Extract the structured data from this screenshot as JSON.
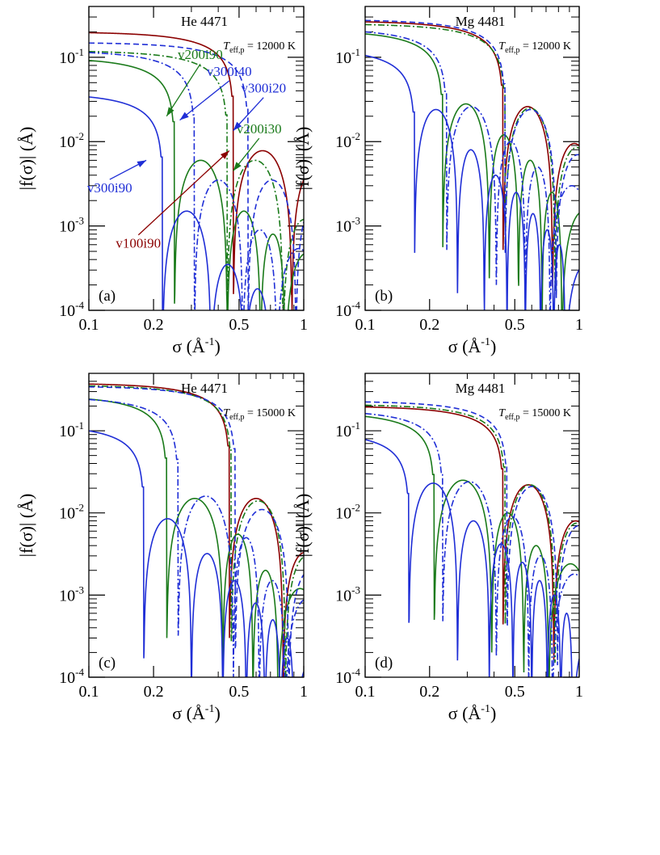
{
  "figure": {
    "series_styles": {
      "v100i90": {
        "color": "#8b0000",
        "dash": "solid"
      },
      "v200i30": {
        "color": "#1a7a1a",
        "dash": "dashdot"
      },
      "v200i90": {
        "color": "#1a7a1a",
        "dash": "solid"
      },
      "v300i20": {
        "color": "#1f2ed6",
        "dash": "dashed"
      },
      "v300i40": {
        "color": "#1f2ed6",
        "dash": "dashdot"
      },
      "v300i90": {
        "color": "#1f2ed6",
        "dash": "solid"
      }
    }
  },
  "chart_data": [
    {
      "type": "line",
      "panel": "(a)",
      "title": "He 4471",
      "annotation": {
        "prefix": "T",
        "sub": "eff,p",
        "suffix": " = 12000 K"
      },
      "xlabel": {
        "main": "σ (Å",
        "sup": "-1",
        "end": ")"
      },
      "ylabel": "|f(σ)|  (Å)",
      "x_scale": "log",
      "y_scale": "log",
      "xlim": [
        0.1,
        1
      ],
      "ylim": [
        0.0001,
        0.4
      ],
      "x_ticks": [
        {
          "v": 0.1,
          "label": "0.1"
        },
        {
          "v": 0.2,
          "label": "0.2"
        },
        {
          "v": 0.5,
          "label": "0.5"
        },
        {
          "v": 1,
          "label": "1"
        }
      ],
      "y_ticks": [
        {
          "v": 0.0001,
          "base": "10",
          "exp": "-4"
        },
        {
          "v": 0.001,
          "base": "10",
          "exp": "-3"
        },
        {
          "v": 0.01,
          "base": "10",
          "exp": "-2"
        },
        {
          "v": 0.1,
          "base": "10",
          "exp": "-1"
        }
      ],
      "series": [
        {
          "name": "v100i90",
          "a0": 0.2,
          "z": [
            0.47,
            0.88
          ],
          "pk": [
            0.0078
          ],
          "lbl": {
            "text": "v100i90",
            "tx": 0.17,
            "ty": 0.00055,
            "ax": 0.45,
            "ay": 0.0078
          }
        },
        {
          "name": "v200i30",
          "a0": 0.12,
          "z": [
            0.44,
            0.8
          ],
          "pk": [
            0.006,
            0.0012
          ],
          "lbl": {
            "text": "v200i30",
            "tx": 0.62,
            "ty": 0.0125,
            "ax": 0.47,
            "ay": 0.0045
          }
        },
        {
          "name": "v200i90",
          "a0": 0.1,
          "z": [
            0.25,
            0.44,
            0.63,
            0.82
          ],
          "pk": [
            0.006,
            0.0015,
            0.0008
          ],
          "lbl": {
            "text": "v200i90",
            "tx": 0.33,
            "ty": 0.095,
            "ax": 0.23,
            "ay": 0.02
          }
        },
        {
          "name": "v300i20",
          "a0": 0.15,
          "z": [
            0.55,
            0.92
          ],
          "pk": [
            0.0035
          ],
          "lbl": {
            "text": "v300i20",
            "tx": 0.65,
            "ty": 0.038,
            "ax": 0.47,
            "ay": 0.0135
          }
        },
        {
          "name": "v300i40",
          "a0": 0.12,
          "z": [
            0.31,
            0.52,
            0.75
          ],
          "pk": [
            0.0035,
            0.0009
          ],
          "lbl": {
            "text": "v300i40",
            "tx": 0.45,
            "ty": 0.06,
            "ax": 0.265,
            "ay": 0.018
          }
        },
        {
          "name": "v300i90",
          "a0": 0.038,
          "z": [
            0.22,
            0.37,
            0.53,
            0.7,
            0.86
          ],
          "pk": [
            0.0015,
            0.00035,
            0.00018,
            0.0001
          ],
          "lbl": {
            "text": "v300i90",
            "tx": 0.125,
            "ty": 0.0025,
            "ax": 0.185,
            "ay": 0.006
          }
        }
      ]
    },
    {
      "type": "line",
      "panel": "(b)",
      "title": "Mg 4481",
      "annotation": {
        "prefix": "T",
        "sub": "eff,p",
        "suffix": " = 12000 K"
      },
      "xlabel": {
        "main": "σ (Å",
        "sup": "-1",
        "end": ")"
      },
      "ylabel": "|f(σ)|  (Å)",
      "x_scale": "log",
      "y_scale": "log",
      "xlim": [
        0.1,
        1
      ],
      "ylim": [
        0.0001,
        0.4
      ],
      "x_ticks": [
        {
          "v": 0.1,
          "label": "0.1"
        },
        {
          "v": 0.2,
          "label": "0.2"
        },
        {
          "v": 0.5,
          "label": "0.5"
        },
        {
          "v": 1,
          "label": "1"
        }
      ],
      "y_ticks": [
        {
          "v": 0.0001,
          "base": "10",
          "exp": "-4"
        },
        {
          "v": 0.001,
          "base": "10",
          "exp": "-3"
        },
        {
          "v": 0.01,
          "base": "10",
          "exp": "-2"
        },
        {
          "v": 0.1,
          "base": "10",
          "exp": "-1"
        }
      ],
      "series": [
        {
          "name": "v100i90",
          "a0": 0.27,
          "z": [
            0.44,
            0.75
          ],
          "pk": [
            0.026,
            0.0095
          ]
        },
        {
          "name": "v200i30",
          "a0": 0.25,
          "z": [
            0.45,
            0.77
          ],
          "pk": [
            0.025,
            0.0085
          ]
        },
        {
          "name": "v200i90",
          "a0": 0.21,
          "z": [
            0.23,
            0.38,
            0.52,
            0.67,
            0.83
          ],
          "pk": [
            0.028,
            0.012,
            0.006,
            0.0025
          ]
        },
        {
          "name": "v300i20",
          "a0": 0.28,
          "z": [
            0.45,
            0.78
          ],
          "pk": [
            0.024,
            0.007
          ]
        },
        {
          "name": "v300i40",
          "a0": 0.22,
          "z": [
            0.24,
            0.41,
            0.56,
            0.73
          ],
          "pk": [
            0.026,
            0.01,
            0.005
          ]
        },
        {
          "name": "v300i90",
          "a0": 0.13,
          "z": [
            0.17,
            0.27,
            0.36,
            0.46,
            0.56,
            0.66,
            0.76,
            0.86
          ],
          "pk": [
            0.024,
            0.008,
            0.004,
            0.0025,
            0.0014,
            0.0009,
            0.0006
          ]
        }
      ]
    },
    {
      "type": "line",
      "panel": "(c)",
      "title": "He 4471",
      "annotation": {
        "prefix": "T",
        "sub": "eff,p",
        "suffix": " = 15000 K"
      },
      "xlabel": {
        "main": "σ (Å",
        "sup": "-1",
        "end": ")"
      },
      "ylabel": "|f(σ)|  (Å)",
      "x_scale": "log",
      "y_scale": "log",
      "xlim": [
        0.1,
        1
      ],
      "ylim": [
        0.0001,
        0.5
      ],
      "x_ticks": [
        {
          "v": 0.1,
          "label": "0.1"
        },
        {
          "v": 0.2,
          "label": "0.2"
        },
        {
          "v": 0.5,
          "label": "0.5"
        },
        {
          "v": 1,
          "label": "1"
        }
      ],
      "y_ticks": [
        {
          "v": 0.0001,
          "base": "10",
          "exp": "-4"
        },
        {
          "v": 0.001,
          "base": "10",
          "exp": "-3"
        },
        {
          "v": 0.01,
          "base": "10",
          "exp": "-2"
        },
        {
          "v": 0.1,
          "base": "10",
          "exp": "-1"
        }
      ],
      "series": [
        {
          "name": "v100i90",
          "a0": 0.38,
          "z": [
            0.45,
            0.8
          ],
          "pk": [
            0.015,
            0.0033
          ]
        },
        {
          "name": "v200i30",
          "a0": 0.36,
          "z": [
            0.46,
            0.82
          ],
          "pk": [
            0.014,
            0.003
          ]
        },
        {
          "name": "v200i90",
          "a0": 0.27,
          "z": [
            0.23,
            0.42,
            0.58,
            0.76
          ],
          "pk": [
            0.015,
            0.0055,
            0.002
          ]
        },
        {
          "name": "v300i20",
          "a0": 0.35,
          "z": [
            0.48,
            0.85
          ],
          "pk": [
            0.011,
            0.002
          ]
        },
        {
          "name": "v300i40",
          "a0": 0.26,
          "z": [
            0.26,
            0.47,
            0.62,
            0.82
          ],
          "pk": [
            0.016,
            0.005,
            0.0015
          ]
        },
        {
          "name": "v300i90",
          "a0": 0.12,
          "z": [
            0.18,
            0.3,
            0.42,
            0.54,
            0.66,
            0.78,
            0.9
          ],
          "pk": [
            0.0085,
            0.0032,
            0.0015,
            0.0008,
            0.0005,
            0.0003
          ]
        }
      ]
    },
    {
      "type": "line",
      "panel": "(d)",
      "title": "Mg 4481",
      "annotation": {
        "prefix": "T",
        "sub": "eff,p",
        "suffix": " = 15000 K"
      },
      "xlabel": {
        "main": "σ (Å",
        "sup": "-1",
        "end": ")"
      },
      "ylabel": "|f(σ)|  (Å)",
      "x_scale": "log",
      "y_scale": "log",
      "xlim": [
        0.1,
        1
      ],
      "ylim": [
        0.0001,
        0.5
      ],
      "x_ticks": [
        {
          "v": 0.1,
          "label": "0.1"
        },
        {
          "v": 0.2,
          "label": "0.2"
        },
        {
          "v": 0.5,
          "label": "0.5"
        },
        {
          "v": 1,
          "label": "1"
        }
      ],
      "y_ticks": [
        {
          "v": 0.0001,
          "base": "10",
          "exp": "-4"
        },
        {
          "v": 0.001,
          "base": "10",
          "exp": "-3"
        },
        {
          "v": 0.01,
          "base": "10",
          "exp": "-2"
        },
        {
          "v": 0.1,
          "base": "10",
          "exp": "-1"
        }
      ],
      "series": [
        {
          "name": "v100i90",
          "a0": 0.2,
          "z": [
            0.44,
            0.76
          ],
          "pk": [
            0.022,
            0.008
          ]
        },
        {
          "name": "v200i30",
          "a0": 0.21,
          "z": [
            0.45,
            0.77
          ],
          "pk": [
            0.022,
            0.0075
          ]
        },
        {
          "name": "v200i90",
          "a0": 0.17,
          "z": [
            0.21,
            0.39,
            0.55,
            0.72
          ],
          "pk": [
            0.025,
            0.01,
            0.004
          ]
        },
        {
          "name": "v300i20",
          "a0": 0.23,
          "z": [
            0.46,
            0.79
          ],
          "pk": [
            0.021,
            0.007
          ]
        },
        {
          "name": "v300i40",
          "a0": 0.18,
          "z": [
            0.23,
            0.41,
            0.58,
            0.75
          ],
          "pk": [
            0.024,
            0.009,
            0.003
          ]
        },
        {
          "name": "v300i90",
          "a0": 0.1,
          "z": [
            0.16,
            0.27,
            0.38,
            0.49,
            0.6,
            0.71,
            0.82,
            0.93
          ],
          "pk": [
            0.023,
            0.008,
            0.0042,
            0.0025,
            0.0015,
            0.001,
            0.0006
          ]
        }
      ]
    }
  ]
}
